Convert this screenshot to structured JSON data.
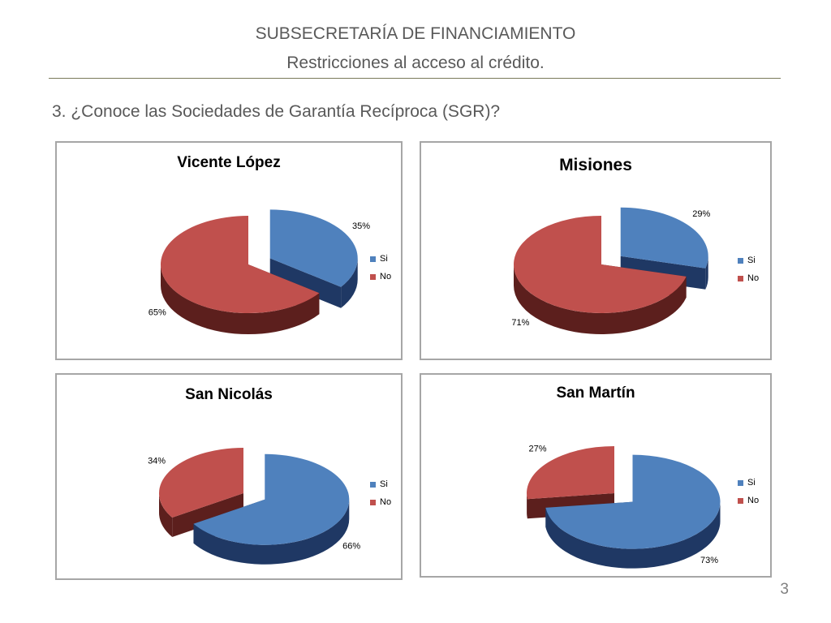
{
  "header": {
    "title": "SUBSECRETARÍA DE FINANCIAMIENTO",
    "subtitle": "Restricciones al acceso al crédito.",
    "question": "3. ¿Conoce las Sociedades de Garantía Recíproca (SGR)?"
  },
  "page_number": "3",
  "colors": {
    "si": "#4f81bd",
    "si_dark": "#1f3864",
    "no": "#c0504d",
    "no_dark": "#5c1f1d"
  },
  "legend": {
    "si": "Si",
    "no": "No"
  },
  "chart_data": [
    {
      "type": "pie",
      "title": "Vicente López",
      "categories": [
        "Si",
        "No"
      ],
      "values": [
        35,
        65
      ],
      "labels": [
        "35%",
        "65%"
      ],
      "style": "3d-exploded",
      "legend_position": "right"
    },
    {
      "type": "pie",
      "title": "Misiones",
      "categories": [
        "Si",
        "No"
      ],
      "values": [
        29,
        71
      ],
      "labels": [
        "29%",
        "71%"
      ],
      "style": "3d-exploded",
      "legend_position": "right"
    },
    {
      "type": "pie",
      "title": "San Nicolás",
      "categories": [
        "Si",
        "No"
      ],
      "values": [
        66,
        34
      ],
      "labels": [
        "66%",
        "34%"
      ],
      "style": "3d-exploded",
      "legend_position": "right"
    },
    {
      "type": "pie",
      "title": "San Martín",
      "categories": [
        "Si",
        "No"
      ],
      "values": [
        73,
        27
      ],
      "labels": [
        "73%",
        "27%"
      ],
      "style": "3d-exploded",
      "legend_position": "right"
    }
  ]
}
